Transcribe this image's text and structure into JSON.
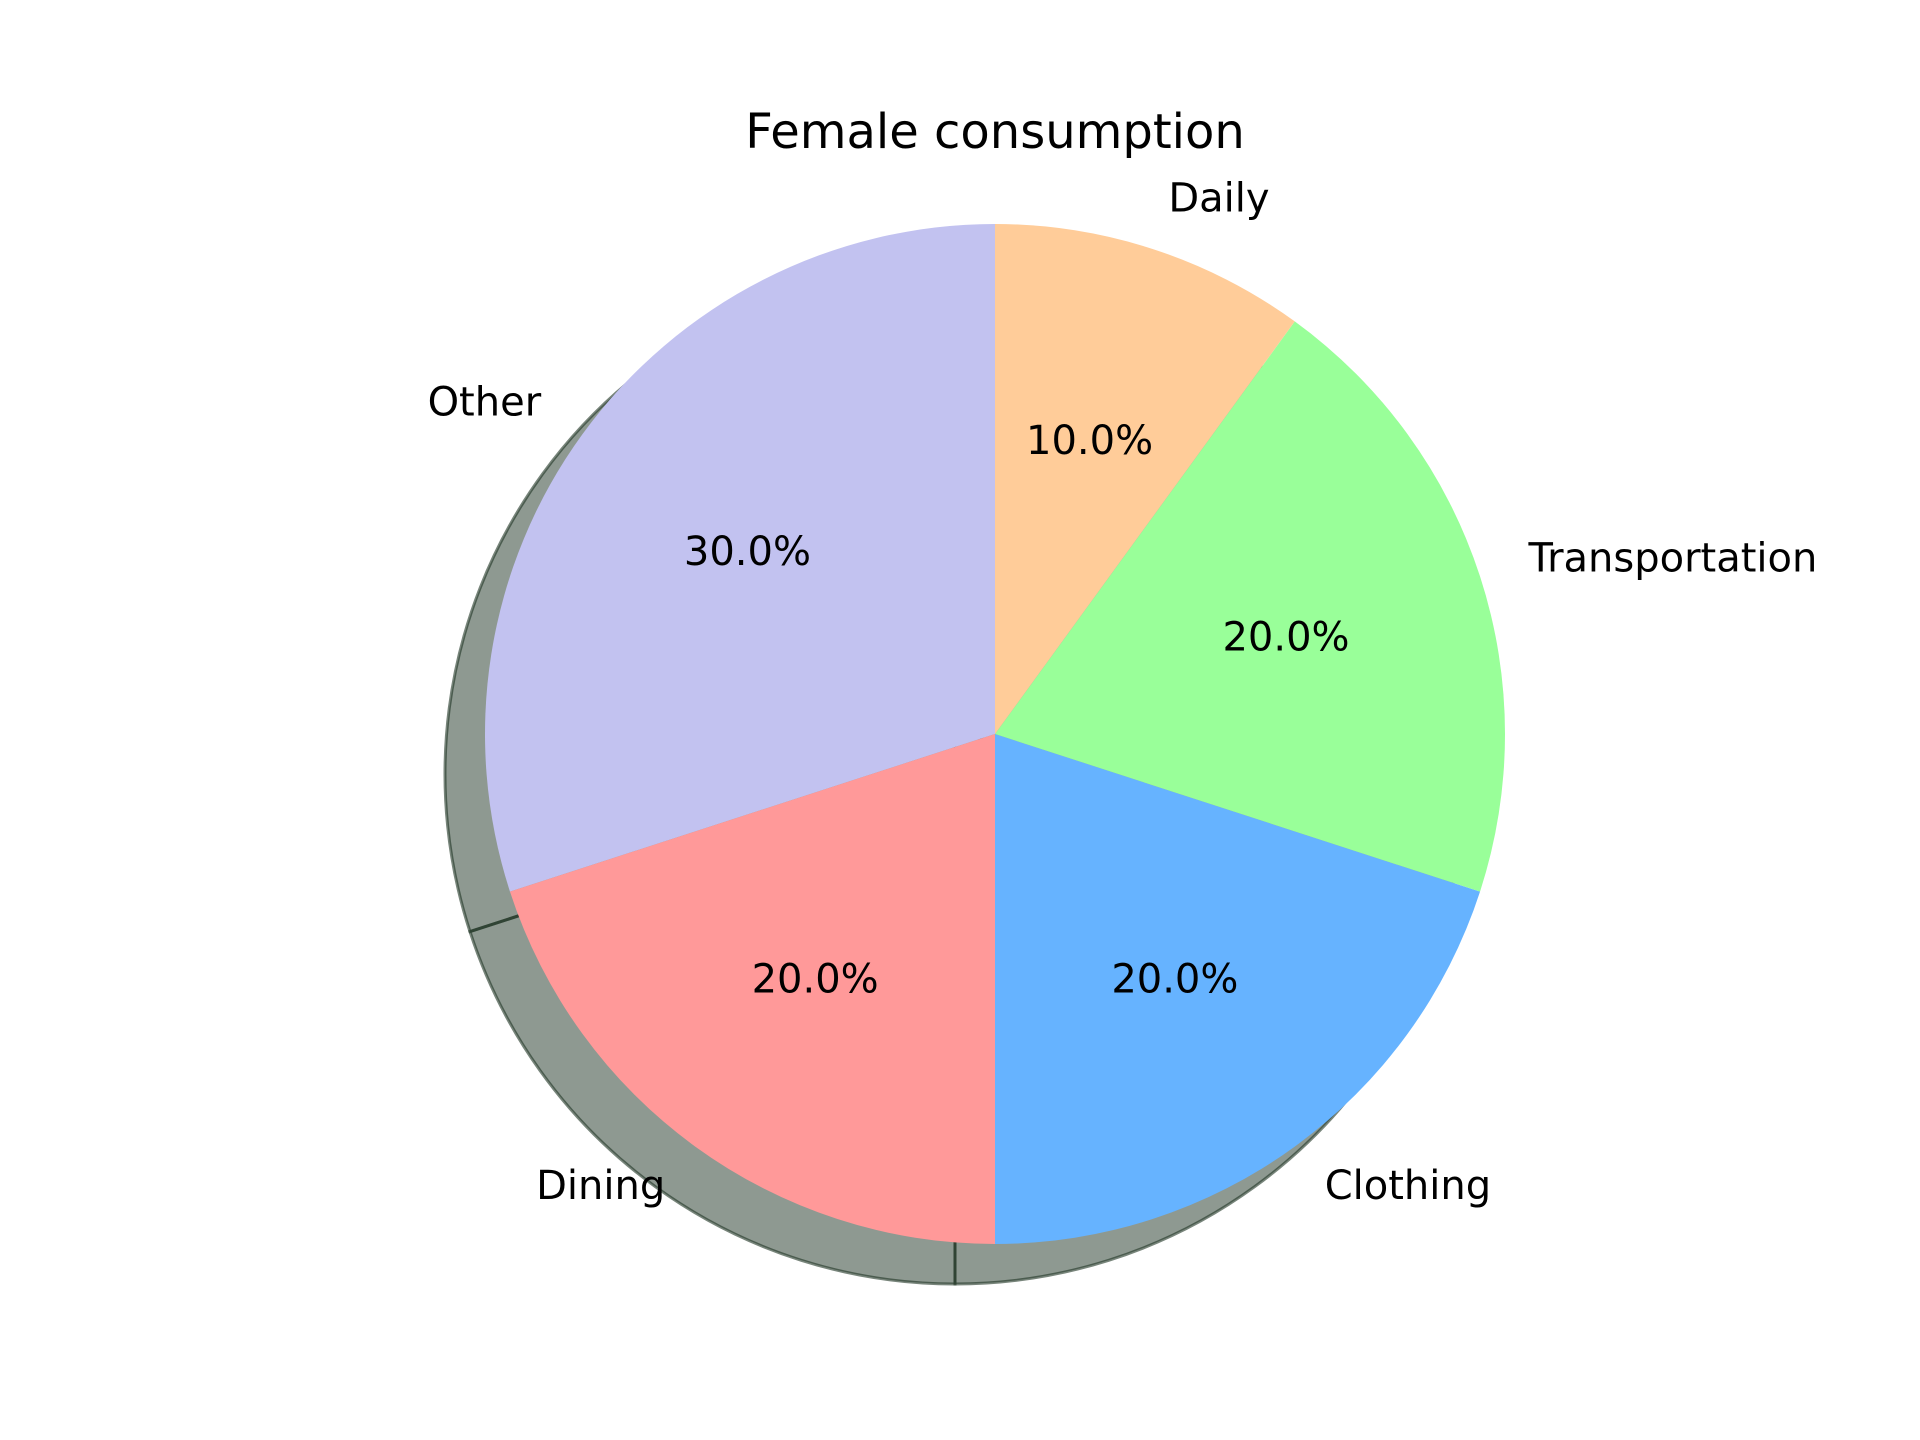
{
  "chart_data": {
    "type": "pie",
    "title": "Female consumption",
    "categories": [
      "Other",
      "Dining",
      "Clothing",
      "Transportation",
      "Daily"
    ],
    "values": [
      30,
      20,
      20,
      20,
      10
    ],
    "percent_labels": [
      "30.0%",
      "20.0%",
      "20.0%",
      "20.0%",
      "10.0%"
    ],
    "colors": [
      "#c2c2f0",
      "#ff9999",
      "#66b3ff",
      "#99ff99",
      "#ffcc99"
    ],
    "start_angle_deg": 90,
    "direction": "counterclockwise",
    "shadow": true,
    "legend": "none"
  }
}
